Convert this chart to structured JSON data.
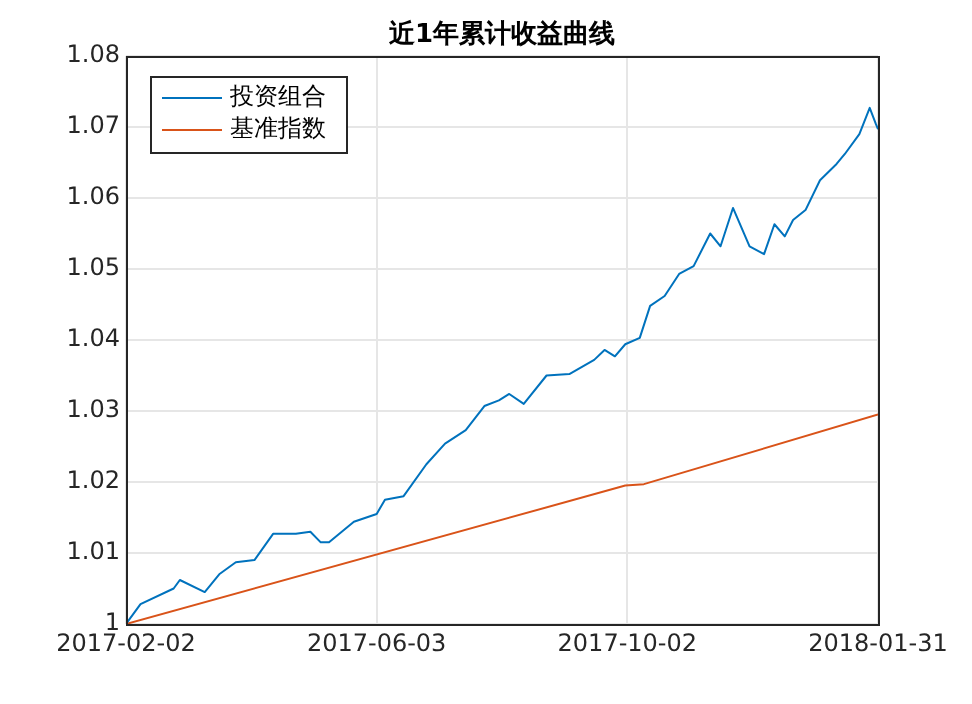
{
  "chart_data": {
    "type": "line",
    "title": "近1年累计收益曲线",
    "xlim": [
      "2017-02-02",
      "2018-01-31"
    ],
    "xticks": [
      "2017-02-02",
      "2017-06-03",
      "2017-10-02",
      "2018-01-31"
    ],
    "ylim": [
      1,
      1.08
    ],
    "yticks": [
      1,
      1.01,
      1.02,
      1.03,
      1.04,
      1.05,
      1.06,
      1.07,
      1.08
    ],
    "grid": true,
    "legend": "top left",
    "marker": "none",
    "line_style": "solid",
    "series": [
      {
        "name": "投资组合",
        "color": "#0072bd",
        "x": [
          "2017-02-02",
          "2017-02-09",
          "2017-02-25",
          "2017-02-28",
          "2017-03-12",
          "2017-03-19",
          "2017-03-27",
          "2017-04-05",
          "2017-04-14",
          "2017-04-25",
          "2017-05-02",
          "2017-05-07",
          "2017-05-11",
          "2017-05-23",
          "2017-06-03",
          "2017-06-07",
          "2017-06-16",
          "2017-06-27",
          "2017-07-06",
          "2017-07-16",
          "2017-07-25",
          "2017-08-01",
          "2017-08-06",
          "2017-08-13",
          "2017-08-24",
          "2017-09-04",
          "2017-09-16",
          "2017-09-21",
          "2017-09-26",
          "2017-10-01",
          "2017-10-08",
          "2017-10-13",
          "2017-10-20",
          "2017-10-27",
          "2017-11-03",
          "2017-11-11",
          "2017-11-16",
          "2017-11-22",
          "2017-11-30",
          "2017-12-07",
          "2017-12-12",
          "2017-12-17",
          "2017-12-21",
          "2017-12-27",
          "2018-01-03",
          "2018-01-11",
          "2018-01-15",
          "2018-01-22",
          "2018-01-27",
          "2018-01-30",
          "2018-01-31"
        ],
        "values": [
          1.0,
          1.0028,
          1.005,
          1.0062,
          1.0045,
          1.007,
          1.0087,
          1.009,
          1.0127,
          1.0127,
          1.013,
          1.0115,
          1.0115,
          1.0144,
          1.0155,
          1.0175,
          1.018,
          1.0225,
          1.0254,
          1.0273,
          1.0307,
          1.0315,
          1.0324,
          1.031,
          1.035,
          1.0352,
          1.0372,
          1.0386,
          1.0377,
          1.0394,
          1.0403,
          1.0448,
          1.0462,
          1.0493,
          1.0504,
          1.055,
          1.0532,
          1.0586,
          1.0532,
          1.0521,
          1.0563,
          1.0546,
          1.0569,
          1.0583,
          1.0625,
          1.0648,
          1.0662,
          1.069,
          1.0727,
          1.0704,
          1.0697
        ]
      },
      {
        "name": "基准指数",
        "color": "#d95319",
        "x": [
          "2017-02-02",
          "2017-10-01",
          "2017-10-10",
          "2018-01-31"
        ],
        "values": [
          1.0,
          1.0195,
          1.0197,
          1.0295
        ]
      }
    ]
  }
}
